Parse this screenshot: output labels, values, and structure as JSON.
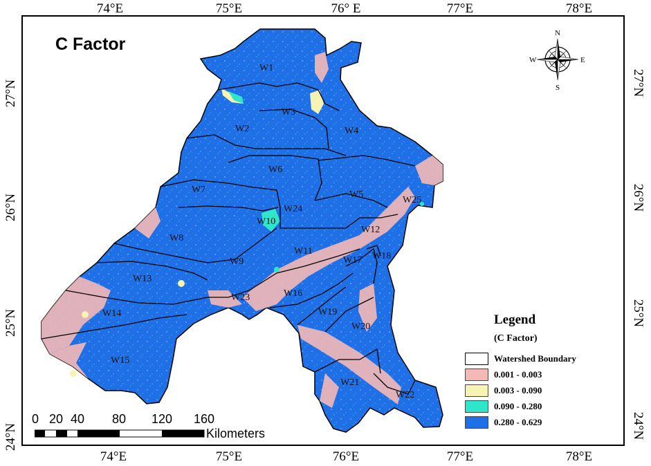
{
  "map": {
    "title": "C Factor",
    "lon_ticks": [
      "74°E",
      "75°E",
      "76° E",
      "77°E",
      "78°E"
    ],
    "lon_ticks_bottom": [
      "74°E",
      "75°E",
      "76°E",
      "77°E",
      "78°E"
    ],
    "lat_ticks_left": [
      "27°N",
      "26°N",
      "25°N",
      "24°N"
    ],
    "lat_ticks_right": [
      "27°N",
      "26°N",
      "25°N",
      "24°N"
    ],
    "watersheds": [
      "W1",
      "W2",
      "W3",
      "W4",
      "W5",
      "W6",
      "W7",
      "W8",
      "W9",
      "W10",
      "W11",
      "W12",
      "W13",
      "W14",
      "W15",
      "W16",
      "W17",
      "W18",
      "W19",
      "W20",
      "W21",
      "W22",
      "W23",
      "W24",
      "W25"
    ],
    "compass": {
      "n": "N",
      "s": "S",
      "e": "E",
      "w": "W"
    }
  },
  "legend": {
    "title": "Legend",
    "subtitle": "(C Factor)",
    "items": [
      {
        "label": "Watershed Boundary",
        "color": "#ffffff"
      },
      {
        "label": "0.001 - 0.003",
        "color": "#f4b9b7"
      },
      {
        "label": "0.003 - 0.090",
        "color": "#f7f4b3"
      },
      {
        "label": "0.090 - 0.280",
        "color": "#2ee6c9"
      },
      {
        "label": "0.280 - 0.629",
        "color": "#1f6fe6"
      }
    ]
  },
  "scale_bar": {
    "labels": [
      "0",
      "20",
      "40",
      "80",
      "120",
      "160"
    ],
    "unit": "Kilometers"
  },
  "colors": {
    "dominant": "#1f6fe6",
    "pink": "#f4b9b7",
    "boundary": "#000000"
  }
}
